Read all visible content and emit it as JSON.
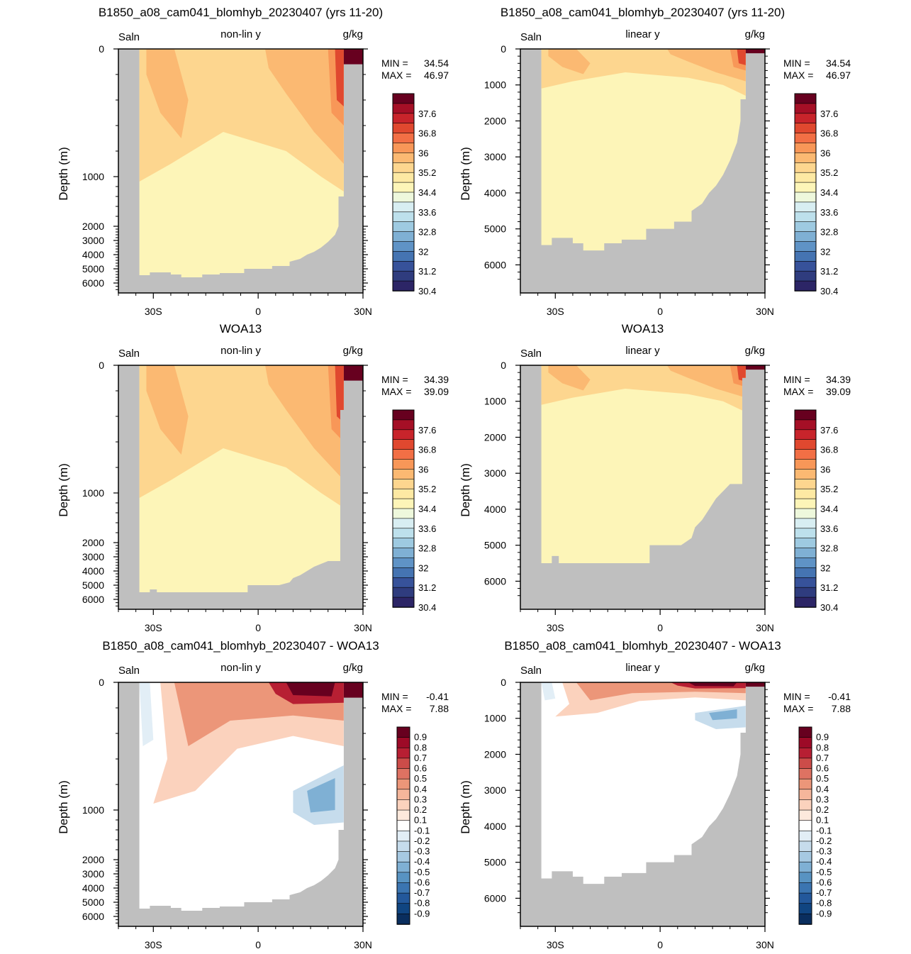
{
  "chart_data": [
    {
      "type": "heatmap",
      "title": "B1850_a08_cam041_blomhyb_20230407 (yrs 11-20)",
      "left_label": "Saln",
      "center_label": "non-lin y",
      "right_label": "g/kg",
      "ylabel": "Depth (m)",
      "yscale": "non-linear",
      "ytick_labels": [
        "0",
        "1000",
        "2000",
        "3000",
        "4000",
        "5000",
        "6000"
      ],
      "xtick_labels": [
        "30S",
        "0",
        "30N"
      ],
      "xlim": [
        -40,
        30
      ],
      "min_label": "MIN =",
      "min_value": "34.54",
      "max_label": "MAX =",
      "max_value": "46.97",
      "colorbar": "salinity",
      "field": "model",
      "bathymetry": "model"
    },
    {
      "type": "heatmap",
      "title": "B1850_a08_cam041_blomhyb_20230407 (yrs 11-20)",
      "left_label": "Saln",
      "center_label": "linear y",
      "right_label": "g/kg",
      "ylabel": "Depth (m)",
      "yscale": "linear",
      "ytick_labels": [
        "0",
        "1000",
        "2000",
        "3000",
        "4000",
        "5000",
        "6000"
      ],
      "xtick_labels": [
        "30S",
        "0",
        "30N"
      ],
      "xlim": [
        -40,
        30
      ],
      "min_label": "MIN =",
      "min_value": "34.54",
      "max_label": "MAX =",
      "max_value": "46.97",
      "colorbar": "salinity",
      "field": "model",
      "bathymetry": "model"
    },
    {
      "type": "heatmap",
      "title": "WOA13",
      "left_label": "Saln",
      "center_label": "non-lin y",
      "right_label": "g/kg",
      "ylabel": "Depth (m)",
      "yscale": "non-linear",
      "ytick_labels": [
        "0",
        "1000",
        "2000",
        "3000",
        "4000",
        "5000",
        "6000"
      ],
      "xtick_labels": [
        "30S",
        "0",
        "30N"
      ],
      "xlim": [
        -40,
        30
      ],
      "min_label": "MIN =",
      "min_value": "34.39",
      "max_label": "MAX =",
      "max_value": "39.09",
      "colorbar": "salinity",
      "field": "obs",
      "bathymetry": "obs"
    },
    {
      "type": "heatmap",
      "title": "WOA13",
      "left_label": "Saln",
      "center_label": "linear y",
      "right_label": "g/kg",
      "ylabel": "Depth (m)",
      "yscale": "linear",
      "ytick_labels": [
        "0",
        "1000",
        "2000",
        "3000",
        "4000",
        "5000",
        "6000"
      ],
      "xtick_labels": [
        "30S",
        "0",
        "30N"
      ],
      "xlim": [
        -40,
        30
      ],
      "min_label": "MIN =",
      "min_value": "34.39",
      "max_label": "MAX =",
      "max_value": "39.09",
      "colorbar": "salinity",
      "field": "obs",
      "bathymetry": "obs"
    },
    {
      "type": "heatmap",
      "title": "B1850_a08_cam041_blomhyb_20230407 - WOA13",
      "left_label": "Saln",
      "center_label": "non-lin y",
      "right_label": "g/kg",
      "ylabel": "Depth (m)",
      "yscale": "non-linear",
      "ytick_labels": [
        "0",
        "1000",
        "2000",
        "3000",
        "4000",
        "5000",
        "6000"
      ],
      "xtick_labels": [
        "30S",
        "0",
        "30N"
      ],
      "xlim": [
        -40,
        30
      ],
      "min_label": "MIN =",
      "min_value": "-0.41",
      "max_label": "MAX =",
      "max_value": "7.88",
      "colorbar": "difference",
      "field": "diff",
      "bathymetry": "model"
    },
    {
      "type": "heatmap",
      "title": "B1850_a08_cam041_blomhyb_20230407 - WOA13",
      "left_label": "Saln",
      "center_label": "linear y",
      "right_label": "g/kg",
      "ylabel": "Depth (m)",
      "yscale": "linear",
      "ytick_labels": [
        "0",
        "1000",
        "2000",
        "3000",
        "4000",
        "5000",
        "6000"
      ],
      "xtick_labels": [
        "30S",
        "0",
        "30N"
      ],
      "xlim": [
        -40,
        30
      ],
      "min_label": "MIN =",
      "min_value": "-0.41",
      "max_label": "MAX =",
      "max_value": "7.88",
      "colorbar": "difference",
      "field": "diff",
      "bathymetry": "model"
    }
  ],
  "colorbars": {
    "salinity": {
      "labels": [
        "37.6",
        "36.8",
        "36",
        "35.2",
        "34.4",
        "33.6",
        "32.8",
        "32",
        "31.2",
        "30.4"
      ],
      "colors": [
        "#67001f",
        "#a50f26",
        "#c8242b",
        "#e0482f",
        "#f26f45",
        "#f89758",
        "#fbb972",
        "#fdd68f",
        "#fde9a3",
        "#fdf5b8",
        "#eef8dc",
        "#d8eef2",
        "#bde0ec",
        "#9ecae1",
        "#7fb0d4",
        "#5f93c6",
        "#4574b2",
        "#37529a",
        "#2f3c7e",
        "#2c2566"
      ]
    },
    "difference": {
      "labels": [
        "0.9",
        "0.8",
        "0.7",
        "0.6",
        "0.5",
        "0.4",
        "0.3",
        "0.2",
        "0.1",
        "-0.1",
        "-0.2",
        "-0.3",
        "-0.4",
        "-0.5",
        "-0.6",
        "-0.7",
        "-0.8",
        "-0.9"
      ],
      "colors": [
        "#67001f",
        "#9d0a27",
        "#b71f33",
        "#cc4c49",
        "#de7262",
        "#ec9679",
        "#f5b69b",
        "#fbd2bd",
        "#fde9dc",
        "#ffffff",
        "#e2eef6",
        "#c6dcec",
        "#a6c9e2",
        "#7fb0d4",
        "#5893c2",
        "#3b75b1",
        "#23589b",
        "#104581",
        "#0a2e5e"
      ]
    }
  },
  "colors": {
    "land": "#bfbfbf",
    "base_salinity": "#fdf5b8",
    "mid_salinity": "#fdd68f",
    "high_salinity": "#fbb972",
    "higher_salinity": "#f89758",
    "top_salinity": "#e0482f",
    "max_salinity": "#67001f"
  }
}
